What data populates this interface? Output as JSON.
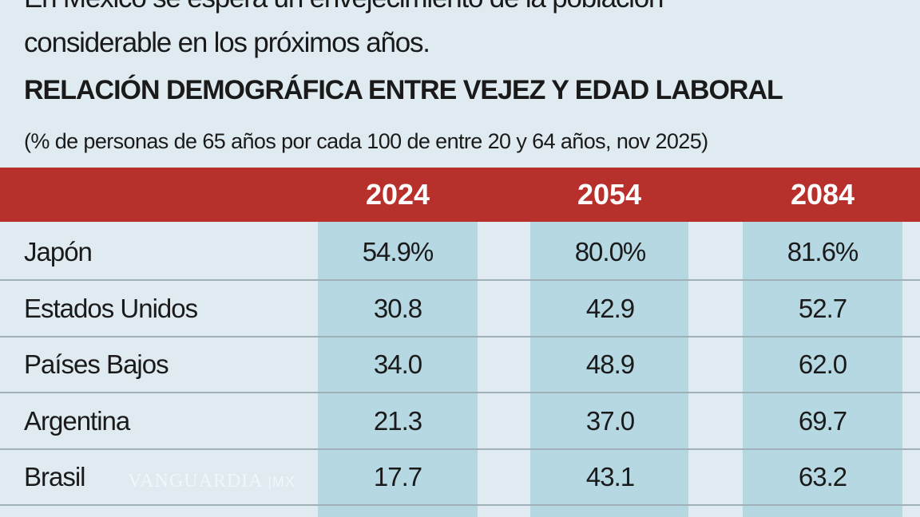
{
  "intro": {
    "line1": "En México se espera un envejecimiento de la población",
    "line2": "considerable en los próximos años."
  },
  "chart_data": {
    "type": "table",
    "title": "RELACIÓN DEMOGRÁFICA ENTRE VEJEZ Y EDAD LABORAL",
    "subtitle": "(% de personas de 65 años por cada 100 de entre 20 y 64 años, nov 2025)",
    "columns": [
      "2024",
      "2054",
      "2084"
    ],
    "rows": [
      {
        "country": "Japón",
        "values": [
          "54.9%",
          "80.0%",
          "81.6%"
        ]
      },
      {
        "country": "Estados Unidos",
        "values": [
          "30.8",
          "42.9",
          "52.7"
        ]
      },
      {
        "country": "Países Bajos",
        "values": [
          "34.0",
          "48.9",
          "62.0"
        ]
      },
      {
        "country": "Argentina",
        "values": [
          "21.3",
          "37.0",
          "69.7"
        ]
      },
      {
        "country": "Brasil",
        "values": [
          "17.7",
          "43.1",
          "63.2"
        ]
      }
    ],
    "colors": {
      "header": "#b8302c",
      "column_band": "#b5d8e3",
      "background": "#dfebf1"
    }
  },
  "watermark": "VANGUARDIA MX"
}
